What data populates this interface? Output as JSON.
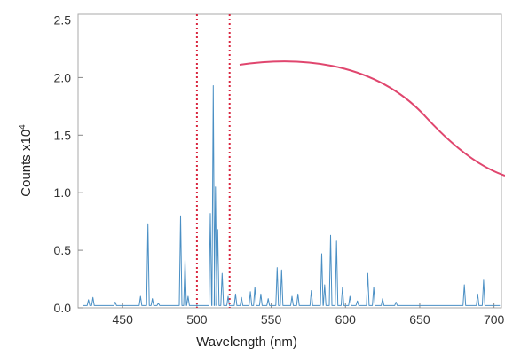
{
  "chart_data": {
    "type": "line",
    "title": "",
    "xlabel": "Wavelength (nm)",
    "ylabel": {
      "prefix": "Counts x10",
      "exponent": "4"
    },
    "xlim": [
      420,
      705
    ],
    "ylim": [
      0,
      2.55
    ],
    "xticks": [
      450,
      500,
      550,
      600,
      650,
      700
    ],
    "yticks": [
      0.0,
      0.5,
      1.0,
      1.5,
      2.0,
      2.5
    ],
    "ytick_labels": [
      "0.0",
      "0.5",
      "1.0",
      "1.5",
      "2.0",
      "2.5"
    ],
    "grid": false,
    "legend": "none",
    "series_color": "#4a8fc4",
    "highlight_region": {
      "x_start": 500,
      "x_end": 522,
      "color": "#d9263f"
    },
    "callout_curve_color": "#e0466e",
    "spectrum_peaks": [
      {
        "x": 427,
        "y": 0.07
      },
      {
        "x": 430,
        "y": 0.09
      },
      {
        "x": 445,
        "y": 0.05
      },
      {
        "x": 462,
        "y": 0.1
      },
      {
        "x": 467,
        "y": 0.73
      },
      {
        "x": 470,
        "y": 0.08
      },
      {
        "x": 474,
        "y": 0.04
      },
      {
        "x": 489,
        "y": 0.8
      },
      {
        "x": 492,
        "y": 0.42
      },
      {
        "x": 494,
        "y": 0.1
      },
      {
        "x": 509,
        "y": 0.82
      },
      {
        "x": 511,
        "y": 1.93
      },
      {
        "x": 512.5,
        "y": 1.05
      },
      {
        "x": 514,
        "y": 0.68
      },
      {
        "x": 517,
        "y": 0.3
      },
      {
        "x": 521,
        "y": 0.1
      },
      {
        "x": 526,
        "y": 0.12
      },
      {
        "x": 530,
        "y": 0.09
      },
      {
        "x": 536,
        "y": 0.14
      },
      {
        "x": 539,
        "y": 0.18
      },
      {
        "x": 543,
        "y": 0.12
      },
      {
        "x": 548,
        "y": 0.08
      },
      {
        "x": 554,
        "y": 0.35
      },
      {
        "x": 557,
        "y": 0.33
      },
      {
        "x": 564,
        "y": 0.1
      },
      {
        "x": 568,
        "y": 0.12
      },
      {
        "x": 577,
        "y": 0.15
      },
      {
        "x": 584,
        "y": 0.47
      },
      {
        "x": 586,
        "y": 0.2
      },
      {
        "x": 590,
        "y": 0.63
      },
      {
        "x": 594,
        "y": 0.58
      },
      {
        "x": 598,
        "y": 0.18
      },
      {
        "x": 603,
        "y": 0.1
      },
      {
        "x": 608,
        "y": 0.06
      },
      {
        "x": 615,
        "y": 0.3
      },
      {
        "x": 619,
        "y": 0.18
      },
      {
        "x": 625,
        "y": 0.08
      },
      {
        "x": 634,
        "y": 0.05
      },
      {
        "x": 680,
        "y": 0.2
      },
      {
        "x": 689,
        "y": 0.12
      },
      {
        "x": 693,
        "y": 0.24
      }
    ]
  }
}
